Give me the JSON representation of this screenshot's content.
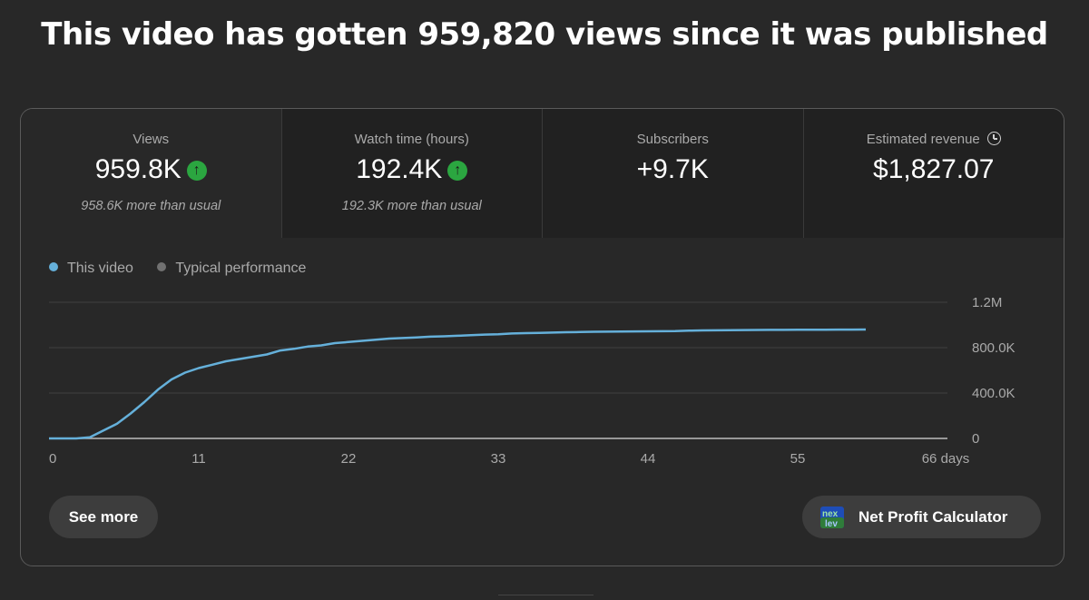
{
  "headline": "This video has gotten 959,820 views since it was published",
  "metrics": [
    {
      "label": "Views",
      "value": "959.8K",
      "trend": "up",
      "note": "958.6K more than usual"
    },
    {
      "label": "Watch time (hours)",
      "value": "192.4K",
      "trend": "up",
      "note": "192.3K more than usual"
    },
    {
      "label": "Subscribers",
      "value": "+9.7K",
      "note": ""
    },
    {
      "label": "Estimated revenue",
      "value": "$1,827.07",
      "note": ""
    }
  ],
  "legend": [
    {
      "label": "This video",
      "color": "#65b0da"
    },
    {
      "label": "Typical performance",
      "color": "#717171"
    }
  ],
  "chart_data": {
    "type": "line",
    "xlabel": "",
    "ylabel": "",
    "x_tick_labels": [
      "0",
      "11",
      "22",
      "33",
      "44",
      "55",
      "66 days"
    ],
    "x_ticks": [
      0,
      11,
      22,
      33,
      44,
      55,
      66
    ],
    "y_tick_labels": [
      "0",
      "400.0K",
      "800.0K",
      "1.2M"
    ],
    "y_ticks": [
      0,
      400000,
      800000,
      1200000
    ],
    "xlim": [
      0,
      66
    ],
    "ylim": [
      0,
      1200000
    ],
    "grid": true,
    "legend_position": "top-left",
    "series": [
      {
        "name": "This video",
        "color": "#65b0da",
        "x": [
          0,
          1,
          2,
          3,
          4,
          5,
          6,
          7,
          8,
          9,
          10,
          11,
          12,
          13,
          14,
          15,
          16,
          17,
          18,
          19,
          20,
          21,
          22,
          23,
          24,
          25,
          26,
          27,
          28,
          29,
          30,
          31,
          32,
          33,
          34,
          35,
          36,
          37,
          38,
          39,
          40,
          41,
          42,
          43,
          44,
          45,
          46,
          47,
          48,
          49,
          50,
          51,
          52,
          53,
          54,
          55,
          56,
          57,
          58,
          59,
          60
        ],
        "y": [
          0,
          0,
          0,
          10000,
          70000,
          130000,
          220000,
          320000,
          430000,
          520000,
          580000,
          620000,
          650000,
          680000,
          700000,
          720000,
          740000,
          775000,
          790000,
          810000,
          820000,
          840000,
          850000,
          860000,
          870000,
          880000,
          885000,
          890000,
          897000,
          900000,
          905000,
          910000,
          915000,
          918000,
          925000,
          928000,
          930000,
          933000,
          936000,
          938000,
          940000,
          941000,
          942000,
          943000,
          944000,
          945000,
          946000,
          950000,
          952000,
          953000,
          954000,
          955000,
          956000,
          956500,
          957000,
          957500,
          958000,
          958500,
          959000,
          959500,
          959820
        ]
      }
    ]
  },
  "buttons": {
    "see_more": "See more",
    "net_profit": "Net Profit Calculator",
    "net_profit_icon": "nexlev-logo-icon",
    "net_profit_logo_text": "nex lev"
  }
}
